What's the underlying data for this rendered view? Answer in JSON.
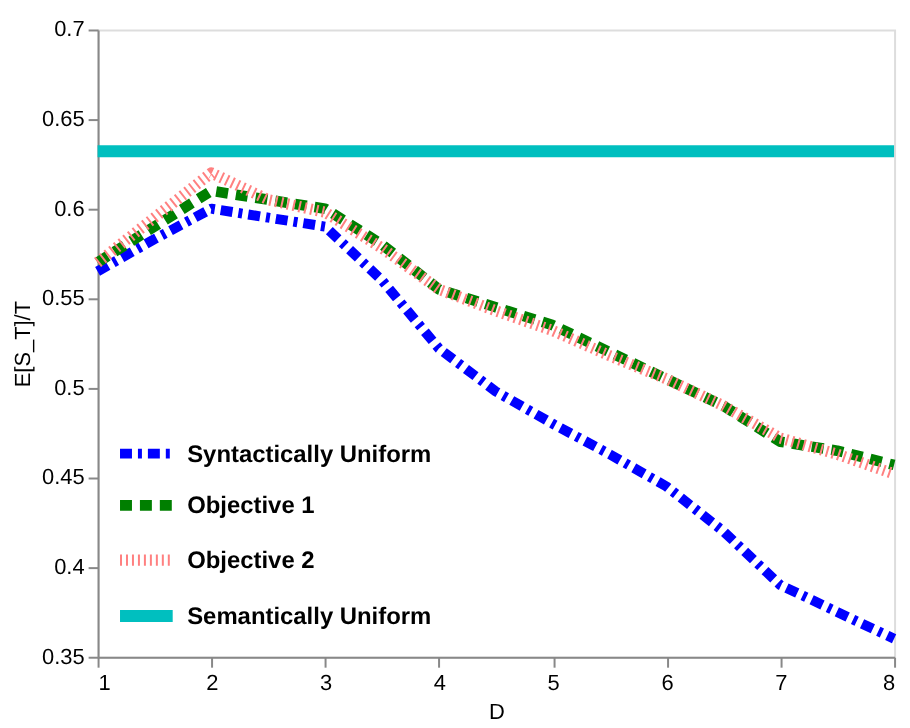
{
  "chart_data": {
    "type": "line",
    "xlabel": "D",
    "ylabel": "E[S_T]/T",
    "x": [
      1,
      1.5,
      2,
      2.5,
      3,
      3.5,
      4,
      4.5,
      5,
      5.5,
      6,
      6.5,
      7,
      7.5,
      8
    ],
    "xlim": [
      1,
      8
    ],
    "xticks": [
      1,
      2,
      3,
      4,
      5,
      6,
      7,
      8
    ],
    "ylim": [
      0.35,
      0.7
    ],
    "yticks": [
      0.35,
      0.4,
      0.45,
      0.5,
      0.55,
      0.6,
      0.65,
      0.7
    ],
    "grid": false,
    "legend": "bottom left",
    "marker": "none",
    "series": [
      {
        "name": "Syntactically Uniform",
        "color": "#0000ff",
        "line_style": "dashdot",
        "values": [
          0.565,
          0.583,
          0.6,
          0.595,
          0.59,
          0.56,
          0.522,
          0.498,
          0.48,
          0.463,
          0.445,
          0.42,
          0.39,
          0.375,
          0.36
        ]
      },
      {
        "name": "Objective 1",
        "color": "#007f00",
        "line_style": "dashed",
        "values": [
          0.57,
          0.59,
          0.61,
          0.605,
          0.6,
          0.58,
          0.555,
          0.545,
          0.535,
          0.52,
          0.505,
          0.49,
          0.47,
          0.465,
          0.457
        ]
      },
      {
        "name": "Objective 2",
        "color": "#ff8080",
        "line_style": "dotted",
        "values": [
          0.57,
          0.595,
          0.62,
          0.605,
          0.598,
          0.578,
          0.555,
          0.543,
          0.532,
          0.518,
          0.505,
          0.49,
          0.472,
          0.463,
          0.452
        ]
      },
      {
        "name": "Semantically Uniform",
        "color": "#00bfbf",
        "line_style": "solid",
        "x": [
          1,
          8
        ],
        "values": [
          0.632,
          0.632
        ]
      }
    ]
  }
}
